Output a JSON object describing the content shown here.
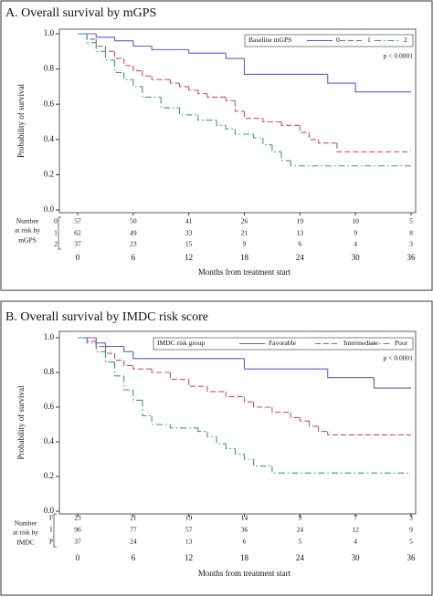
{
  "chart_data": [
    {
      "type": "step",
      "title": "A. Overall survival by mGPS",
      "xlabel": "Months from treatment start",
      "ylabel": "Probability of survival",
      "annotation": "p < 0.0001",
      "legend_title": "Baseline mGPS",
      "xlim": [
        0,
        36
      ],
      "xticks": [
        0,
        6,
        12,
        18,
        24,
        30,
        36
      ],
      "ylim": [
        0,
        1
      ],
      "yticks": [
        {
          "value": 0,
          "label": "0.0"
        },
        0.2,
        0.4,
        0.6,
        0.8,
        {
          "value": 1,
          "label": "1.0"
        }
      ],
      "series": [
        {
          "name": "0",
          "color": "#5a5fc8",
          "dash": "solid",
          "x": [
            0,
            2,
            4,
            6,
            8,
            12,
            16,
            18,
            27,
            30,
            36
          ],
          "values": [
            1.0,
            0.98,
            0.96,
            0.93,
            0.91,
            0.89,
            0.86,
            0.77,
            0.72,
            0.67,
            0.67
          ]
        },
        {
          "name": "1",
          "color": "#c8506a",
          "dash": "dash",
          "x": [
            0,
            1,
            2,
            3,
            4,
            5,
            6,
            7,
            8,
            10,
            11,
            12,
            13,
            14,
            16,
            17,
            18,
            20,
            22,
            24,
            25,
            26,
            28,
            36
          ],
          "values": [
            1.0,
            0.97,
            0.93,
            0.9,
            0.86,
            0.82,
            0.79,
            0.76,
            0.74,
            0.72,
            0.7,
            0.68,
            0.66,
            0.64,
            0.62,
            0.56,
            0.52,
            0.5,
            0.48,
            0.44,
            0.4,
            0.38,
            0.33,
            0.33
          ]
        },
        {
          "name": "2",
          "color": "#3a9a80",
          "dash": "dashdot",
          "x": [
            0,
            1,
            2,
            3,
            4,
            5,
            6,
            7,
            9,
            11,
            13,
            15,
            16,
            17,
            19,
            20,
            21,
            22,
            23,
            36
          ],
          "values": [
            1.0,
            0.95,
            0.9,
            0.85,
            0.78,
            0.74,
            0.7,
            0.64,
            0.58,
            0.54,
            0.51,
            0.48,
            0.46,
            0.43,
            0.41,
            0.37,
            0.33,
            0.28,
            0.25,
            0.25
          ]
        }
      ],
      "risk_table": {
        "label": [
          "Number",
          "at risk by",
          "mGPS"
        ],
        "groups": [
          "0",
          "1",
          "2"
        ],
        "rows": [
          [
            57,
            50,
            41,
            26,
            19,
            10,
            5
          ],
          [
            62,
            49,
            33,
            21,
            13,
            9,
            8
          ],
          [
            37,
            23,
            15,
            9,
            6,
            4,
            3
          ]
        ]
      }
    },
    {
      "type": "step",
      "title": "B. Overall survival by IMDC risk score",
      "xlabel": "Months from treatment start",
      "ylabel": "Probability of survival",
      "annotation": "p < 0.0001",
      "legend_title": "IMDC risk group",
      "xlim": [
        0,
        36
      ],
      "xticks": [
        0,
        6,
        12,
        18,
        24,
        30,
        36
      ],
      "ylim": [
        0,
        1
      ],
      "yticks": [
        {
          "value": 0,
          "label": "0.0"
        },
        0.2,
        0.4,
        0.6,
        0.8,
        {
          "value": 1,
          "label": "1.0"
        }
      ],
      "series": [
        {
          "name": "Favorable",
          "color": "#5a5fc8",
          "dash": "solid",
          "x": [
            0,
            2,
            3,
            5,
            6,
            18,
            27,
            32,
            36
          ],
          "values": [
            1.0,
            0.97,
            0.95,
            0.92,
            0.88,
            0.82,
            0.77,
            0.71,
            0.71
          ]
        },
        {
          "name": "Intermediate",
          "color": "#c8506a",
          "dash": "dash",
          "x": [
            0,
            1,
            2,
            3,
            4,
            5,
            6,
            8,
            10,
            12,
            14,
            16,
            18,
            19,
            21,
            23,
            24,
            25,
            26,
            27,
            36
          ],
          "values": [
            1.0,
            0.98,
            0.95,
            0.91,
            0.87,
            0.84,
            0.82,
            0.8,
            0.76,
            0.72,
            0.69,
            0.66,
            0.63,
            0.6,
            0.57,
            0.54,
            0.52,
            0.49,
            0.46,
            0.44,
            0.44
          ]
        },
        {
          "name": "Poor",
          "color": "#3a9a80",
          "dash": "dashdot",
          "x": [
            0,
            1,
            2,
            3,
            4,
            5,
            6,
            7,
            8,
            10,
            13,
            14,
            15,
            16,
            17,
            18,
            19,
            21,
            36
          ],
          "values": [
            1.0,
            0.97,
            0.92,
            0.86,
            0.78,
            0.7,
            0.64,
            0.55,
            0.5,
            0.48,
            0.46,
            0.43,
            0.39,
            0.36,
            0.33,
            0.3,
            0.26,
            0.22,
            0.22
          ]
        }
      ],
      "risk_table": {
        "label": [
          "Number",
          "at risk by",
          "IMDC"
        ],
        "groups": [
          "F",
          "I",
          "P"
        ],
        "rows": [
          [
            23,
            21,
            19,
            14,
            9,
            7,
            3
          ],
          [
            96,
            77,
            57,
            36,
            24,
            12,
            9
          ],
          [
            37,
            24,
            13,
            6,
            5,
            4,
            5
          ]
        ]
      }
    }
  ]
}
